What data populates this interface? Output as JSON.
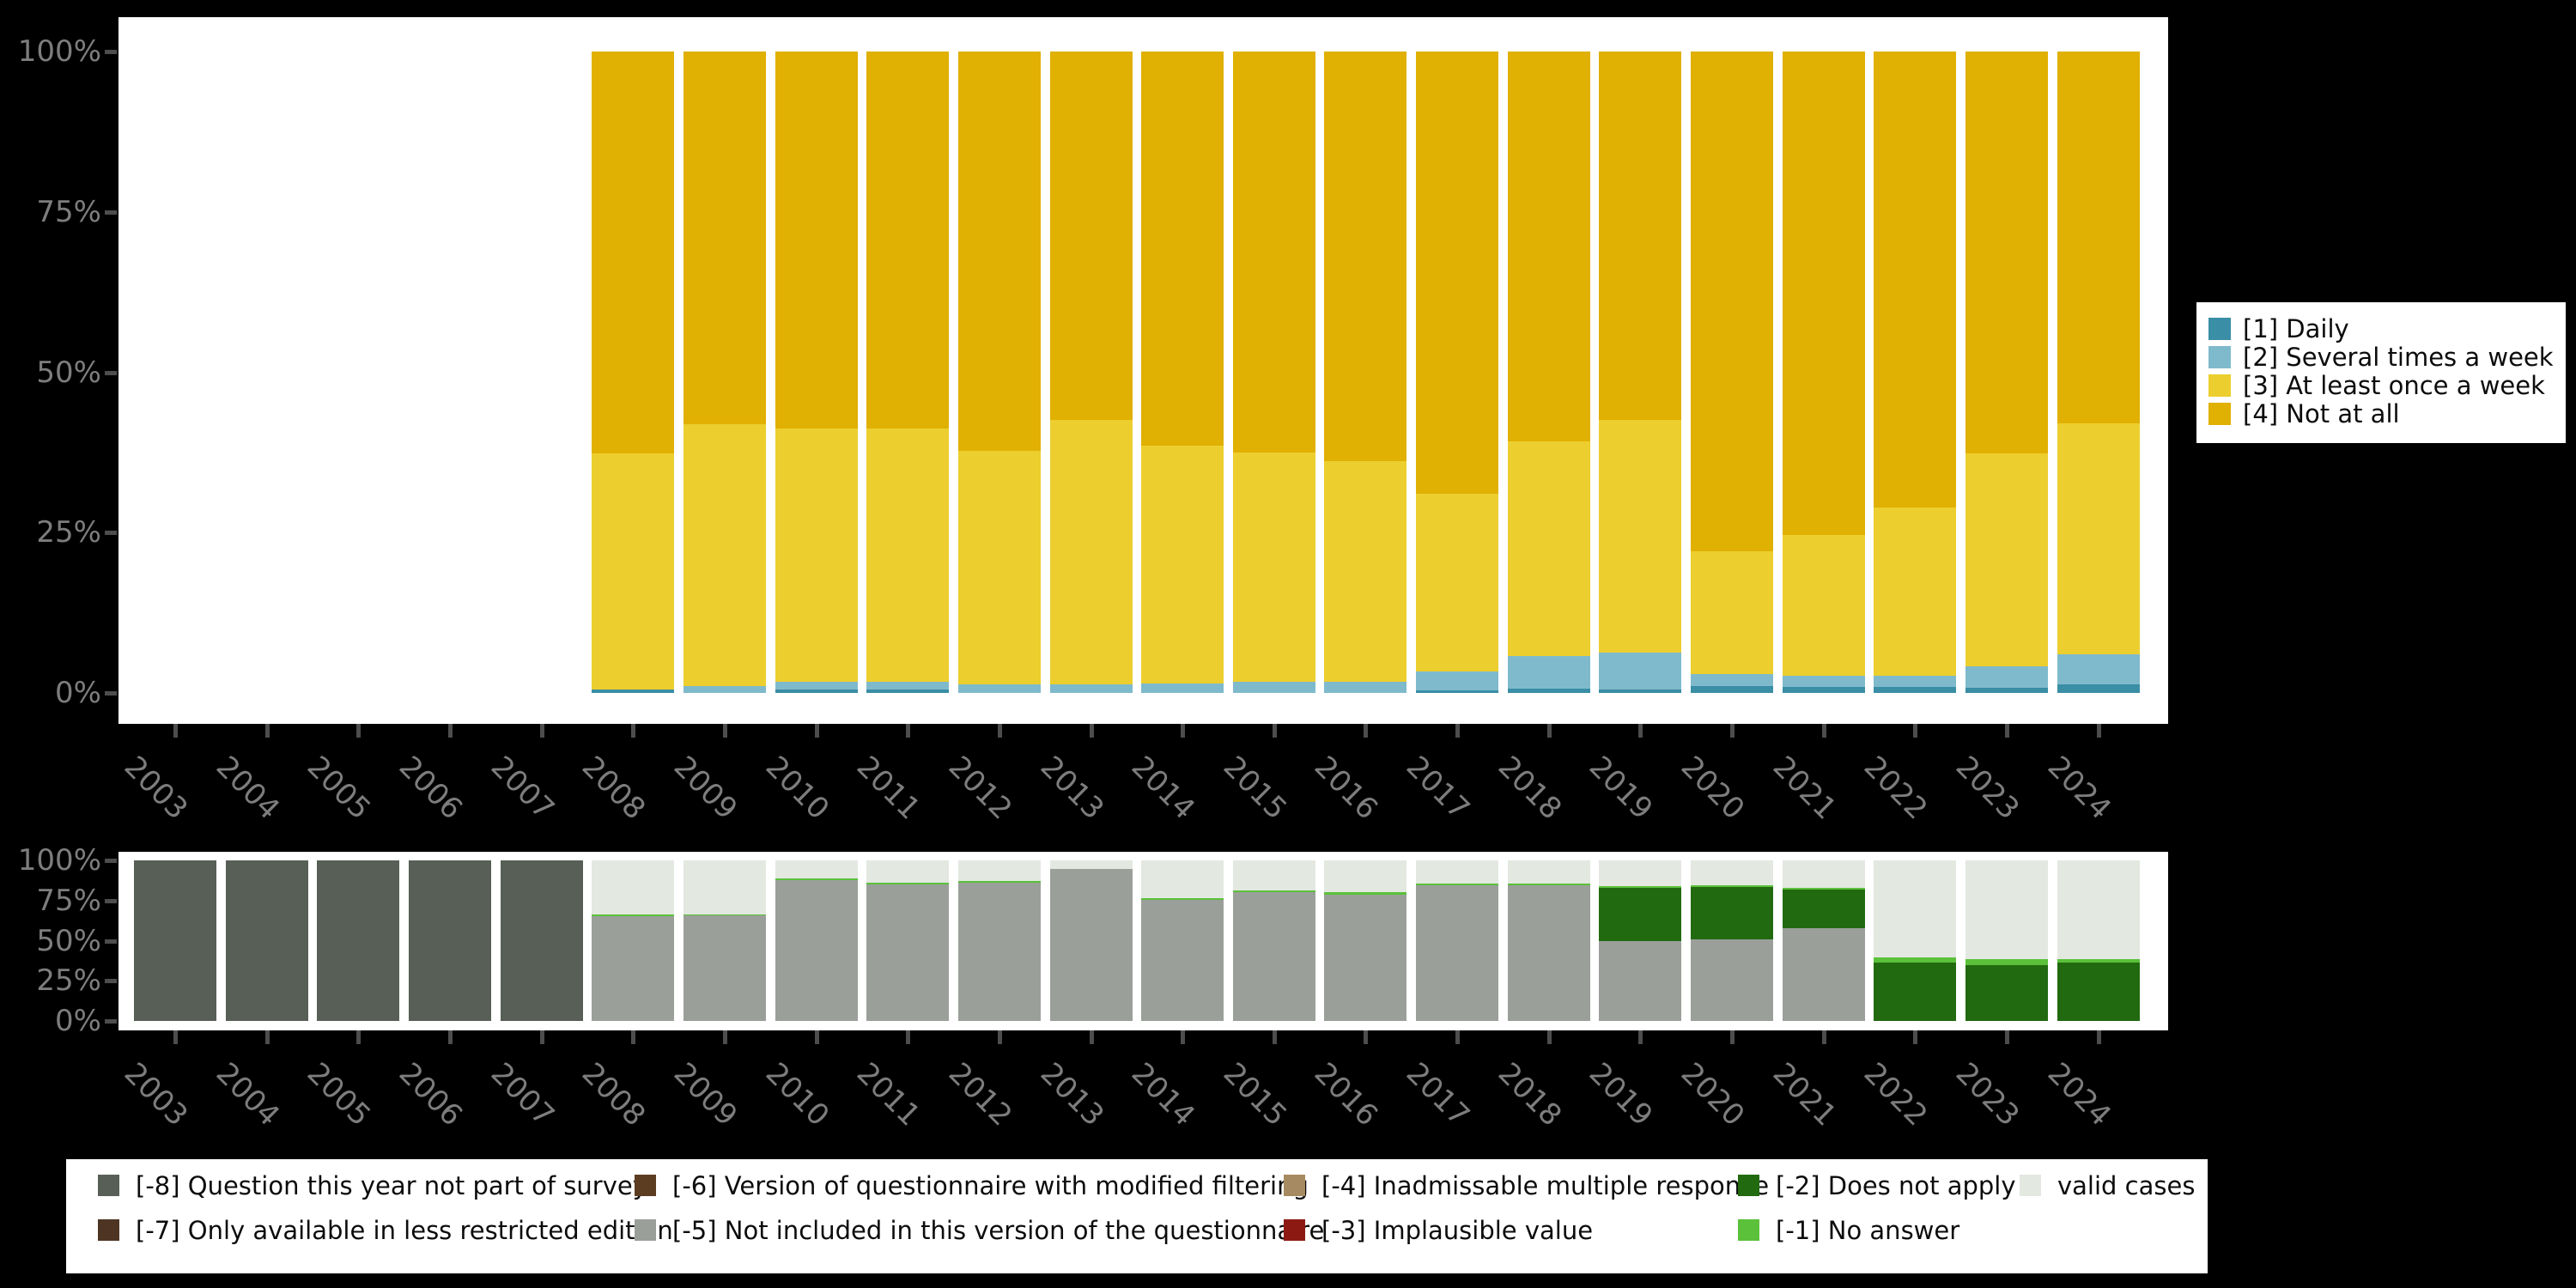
{
  "colors": {
    "background": "#000000",
    "plot_background": "#ffffff",
    "axis_text": "#7d7d7d",
    "tick_mark": "#4d4d4d",
    "daily": "#3a8ea6",
    "several_times_week": "#7fbacc",
    "at_least_once_week": "#ecce2e",
    "not_at_all": "#e0b002",
    "m8": "#575f57",
    "m7": "#4e3523",
    "m6": "#5d3d22",
    "m5": "#9aa099",
    "m4": "#a68a61",
    "m3": "#8c1a12",
    "m2": "#226a10",
    "m1": "#5bc13a",
    "valid": "#e3e8e1"
  },
  "y_axis_ticks": [
    "0%",
    "25%",
    "50%",
    "75%",
    "100%"
  ],
  "chart_data": [
    {
      "type": "bar",
      "stacked": true,
      "id": "frequency-distribution",
      "title": "",
      "xlabel": "",
      "ylabel": "",
      "ylim": [
        0,
        100
      ],
      "y_tick_labels": [
        "0%",
        "25%",
        "50%",
        "75%",
        "100%"
      ],
      "legend_position": "right",
      "categories": [
        2003,
        2004,
        2005,
        2006,
        2007,
        2008,
        2009,
        2010,
        2011,
        2012,
        2013,
        2014,
        2015,
        2016,
        2017,
        2018,
        2019,
        2020,
        2021,
        2022,
        2023,
        2024
      ],
      "series": [
        {
          "name": "[1] Daily",
          "color_key": "daily",
          "values": [
            null,
            null,
            null,
            null,
            null,
            0.5,
            0.0,
            0.5,
            0.5,
            0.0,
            0.0,
            0.0,
            0.0,
            0.0,
            0.4,
            0.7,
            0.5,
            1.1,
            0.9,
            0.9,
            0.8,
            1.4
          ]
        },
        {
          "name": "[2] Several times a week",
          "color_key": "several_times_week",
          "values": [
            null,
            null,
            null,
            null,
            null,
            0.0,
            1.1,
            1.3,
            1.3,
            1.4,
            1.4,
            1.5,
            1.7,
            1.7,
            3.0,
            5.0,
            5.8,
            1.8,
            1.8,
            1.8,
            3.4,
            4.6
          ]
        },
        {
          "name": "[3] At least once a week",
          "color_key": "at_least_once_week",
          "values": [
            null,
            null,
            null,
            null,
            null,
            36.9,
            40.8,
            39.4,
            39.4,
            36.3,
            41.2,
            37.0,
            35.8,
            34.4,
            27.7,
            33.5,
            36.3,
            19.2,
            21.9,
            26.2,
            33.1,
            36.1
          ]
        },
        {
          "name": "[4] Not at all",
          "color_key": "not_at_all",
          "values": [
            null,
            null,
            null,
            null,
            null,
            62.6,
            58.1,
            58.8,
            58.8,
            62.3,
            57.4,
            61.5,
            62.5,
            63.9,
            68.9,
            60.8,
            57.4,
            77.9,
            75.4,
            71.1,
            62.7,
            57.9
          ]
        }
      ]
    },
    {
      "type": "bar",
      "stacked": true,
      "id": "missing-values",
      "title": "",
      "xlabel": "",
      "ylabel": "",
      "ylim": [
        0,
        100
      ],
      "y_tick_labels": [
        "0%",
        "25%",
        "50%",
        "75%",
        "100%"
      ],
      "legend_position": "bottom",
      "categories": [
        2003,
        2004,
        2005,
        2006,
        2007,
        2008,
        2009,
        2010,
        2011,
        2012,
        2013,
        2014,
        2015,
        2016,
        2017,
        2018,
        2019,
        2020,
        2021,
        2022,
        2023,
        2024
      ],
      "series": [
        {
          "name": "[-8] Question this year not part of survey",
          "color_key": "m8",
          "values": [
            100,
            100,
            100,
            100,
            100,
            0,
            0,
            0,
            0,
            0,
            0,
            0,
            0,
            0,
            0,
            0,
            0,
            0,
            0,
            0,
            0,
            0
          ]
        },
        {
          "name": "[-5] Not included in this version of the questionnaire",
          "color_key": "m5",
          "values": [
            0,
            0,
            0,
            0,
            0,
            65.3,
            65.7,
            87.9,
            85.0,
            86.1,
            95.0,
            75.7,
            80.4,
            78.9,
            84.7,
            84.7,
            49.6,
            50.7,
            57.7,
            0,
            0,
            0
          ]
        },
        {
          "name": "[-2] Does not apply",
          "color_key": "m2",
          "values": [
            0,
            0,
            0,
            0,
            0,
            0,
            0,
            0,
            0,
            0,
            0,
            0,
            0,
            0,
            0,
            0,
            33.6,
            32.7,
            24.1,
            36.2,
            34.8,
            36.2
          ]
        },
        {
          "name": "[-1] No answer",
          "color_key": "m1",
          "values": [
            0,
            0,
            0,
            0,
            0,
            0.9,
            0.9,
            1.1,
            1.1,
            1.1,
            0.0,
            1.1,
            1.1,
            1.4,
            1.1,
            1.1,
            1.0,
            1.1,
            1.1,
            3.2,
            3.6,
            2.3
          ]
        },
        {
          "name": "valid cases",
          "color_key": "valid",
          "values": [
            0,
            0,
            0,
            0,
            0,
            33.8,
            33.4,
            11.0,
            13.9,
            12.8,
            5.0,
            23.2,
            18.5,
            19.7,
            14.2,
            14.2,
            15.8,
            15.5,
            17.1,
            60.6,
            61.6,
            61.5
          ]
        }
      ]
    }
  ],
  "legend_right": {
    "items": [
      {
        "label": "[1] Daily",
        "color_key": "daily"
      },
      {
        "label": "[2] Several times a week",
        "color_key": "several_times_week"
      },
      {
        "label": "[3] At least once a week",
        "color_key": "at_least_once_week"
      },
      {
        "label": "[4] Not at all",
        "color_key": "not_at_all"
      }
    ]
  },
  "legend_bottom": {
    "items": [
      {
        "label": "[-8] Question this year not part of survey",
        "color_key": "m8",
        "row": 0,
        "col": 0
      },
      {
        "label": "[-7] Only available in less restricted edition",
        "color_key": "m7",
        "row": 1,
        "col": 0
      },
      {
        "label": "[-6] Version of questionnaire with modified filtering",
        "color_key": "m6",
        "row": 0,
        "col": 1
      },
      {
        "label": "[-5] Not included in this version of the questionnaire",
        "color_key": "m5",
        "row": 1,
        "col": 1
      },
      {
        "label": "[-4] Inadmissable multiple response",
        "color_key": "m4",
        "row": 0,
        "col": 2
      },
      {
        "label": "[-3] Implausible value",
        "color_key": "m3",
        "row": 1,
        "col": 2
      },
      {
        "label": "[-2] Does not apply",
        "color_key": "m2",
        "row": 0,
        "col": 3
      },
      {
        "label": "[-1] No answer",
        "color_key": "m1",
        "row": 1,
        "col": 3
      },
      {
        "label": "valid cases",
        "color_key": "valid",
        "row": 0,
        "col": 4
      }
    ]
  }
}
